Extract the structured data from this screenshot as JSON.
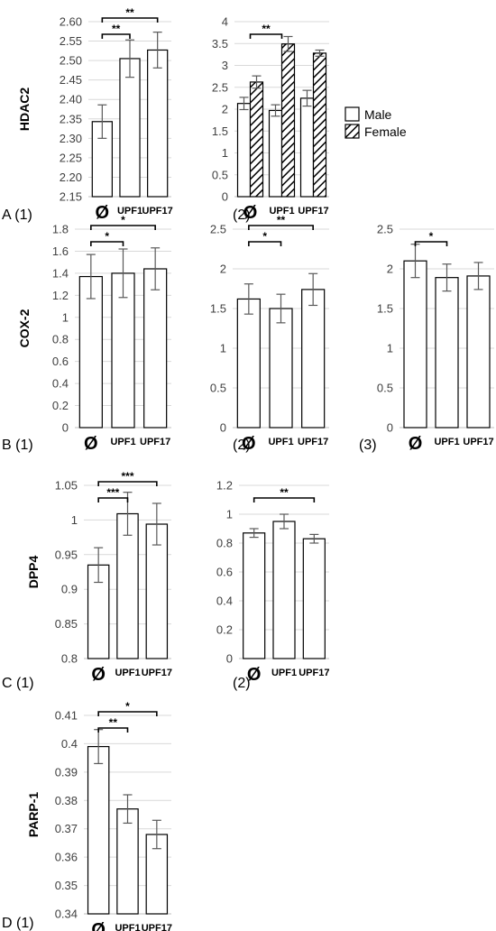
{
  "figure": {
    "legend": [
      {
        "name": "Male",
        "pattern": "solid"
      },
      {
        "name": "Female",
        "pattern": "hatch"
      }
    ]
  },
  "chart_data": [
    {
      "id": "A1",
      "panel_label": "A (1)",
      "type": "bar",
      "ylabel": "HDAC2",
      "categories": [
        "Ø",
        "UPF1",
        "UPF17"
      ],
      "ylim": [
        2.15,
        2.6
      ],
      "yticks": [
        2.15,
        2.2,
        2.25,
        2.3,
        2.35,
        2.4,
        2.45,
        2.5,
        2.55,
        2.6
      ],
      "ytick_decimals": 2,
      "series": [
        {
          "values": [
            2.343,
            2.505,
            2.527
          ],
          "errors": [
            0.043,
            0.048,
            0.046
          ]
        }
      ],
      "significance": [
        {
          "from": 0,
          "to": 1,
          "label": "**"
        },
        {
          "from": 0,
          "to": 2,
          "label": "**"
        }
      ]
    },
    {
      "id": "A2",
      "panel_label": "(2)",
      "type": "bar",
      "ylabel": "",
      "categories": [
        "Ø",
        "UPF1",
        "UPF17"
      ],
      "ylim": [
        0,
        4
      ],
      "yticks": [
        0,
        0.5,
        1,
        1.5,
        2,
        2.5,
        3,
        3.5,
        4
      ],
      "ytick_decimals": -1,
      "series": [
        {
          "name": "Male",
          "values": [
            2.13,
            1.97,
            2.25
          ],
          "errors": [
            0.14,
            0.13,
            0.18
          ]
        },
        {
          "name": "Female",
          "values": [
            2.62,
            3.49,
            3.28
          ],
          "errors": [
            0.14,
            0.17,
            0.07
          ]
        }
      ],
      "significance": [
        {
          "from": 0,
          "to": 1,
          "label": "**"
        }
      ]
    },
    {
      "id": "B1",
      "panel_label": "B (1)",
      "type": "bar",
      "ylabel": "COX-2",
      "categories": [
        "Ø",
        "UPF1",
        "UPF17"
      ],
      "ylim": [
        0,
        1.8
      ],
      "yticks": [
        0,
        0.2,
        0.4,
        0.6,
        0.8,
        1,
        1.2,
        1.4,
        1.6,
        1.8
      ],
      "ytick_decimals": -1,
      "series": [
        {
          "values": [
            1.37,
            1.4,
            1.44
          ],
          "errors": [
            0.2,
            0.22,
            0.19
          ]
        }
      ],
      "significance": [
        {
          "from": 0,
          "to": 1,
          "label": "*"
        },
        {
          "from": 0,
          "to": 2,
          "label": "*"
        }
      ]
    },
    {
      "id": "B2",
      "panel_label": "(2)",
      "type": "bar",
      "ylabel": "",
      "categories": [
        "Ø",
        "UPF1",
        "UPF17"
      ],
      "ylim": [
        0,
        2.5
      ],
      "yticks": [
        0,
        0.5,
        1,
        1.5,
        2,
        2.5
      ],
      "ytick_decimals": -1,
      "series": [
        {
          "values": [
            1.62,
            1.5,
            1.74
          ],
          "errors": [
            0.19,
            0.18,
            0.2
          ]
        }
      ],
      "significance": [
        {
          "from": 0,
          "to": 1,
          "label": "*"
        },
        {
          "from": 0,
          "to": 2,
          "label": "**"
        }
      ]
    },
    {
      "id": "B3",
      "panel_label": "(3)",
      "type": "bar",
      "ylabel": "",
      "categories": [
        "Ø",
        "UPF1",
        "UPF17"
      ],
      "ylim": [
        0,
        2.5
      ],
      "yticks": [
        0,
        0.5,
        1,
        1.5,
        2,
        2.5
      ],
      "ytick_decimals": -1,
      "series": [
        {
          "values": [
            2.1,
            1.89,
            1.91
          ],
          "errors": [
            0.21,
            0.17,
            0.17
          ]
        }
      ],
      "significance": [
        {
          "from": 0,
          "to": 1,
          "label": "*"
        }
      ]
    },
    {
      "id": "C1",
      "panel_label": "C (1)",
      "type": "bar",
      "ylabel": "DPP4",
      "categories": [
        "Ø",
        "UPF1",
        "UPF17"
      ],
      "ylim": [
        0.8,
        1.05
      ],
      "yticks": [
        0.8,
        0.85,
        0.9,
        0.95,
        1,
        1.05
      ],
      "ytick_decimals": -1,
      "series": [
        {
          "values": [
            0.935,
            1.009,
            0.994
          ],
          "errors": [
            0.025,
            0.031,
            0.03
          ]
        }
      ],
      "significance": [
        {
          "from": 0,
          "to": 1,
          "label": "***"
        },
        {
          "from": 0,
          "to": 2,
          "label": "***"
        }
      ]
    },
    {
      "id": "C2",
      "panel_label": "(2)",
      "type": "bar",
      "ylabel": "",
      "categories": [
        "Ø",
        "UPF1",
        "UPF17"
      ],
      "ylim": [
        0,
        1.2
      ],
      "yticks": [
        0,
        0.2,
        0.4,
        0.6,
        0.8,
        1,
        1.2
      ],
      "ytick_decimals": -1,
      "series": [
        {
          "values": [
            0.87,
            0.95,
            0.83
          ],
          "errors": [
            0.03,
            0.05,
            0.03
          ]
        }
      ],
      "significance": [
        {
          "from": 0,
          "to": 2,
          "label": "**"
        }
      ]
    },
    {
      "id": "D1",
      "panel_label": "D (1)",
      "type": "bar",
      "ylabel": "PARP-1",
      "categories": [
        "Ø",
        "UPF1",
        "UPF17"
      ],
      "ylim": [
        0.34,
        0.41
      ],
      "yticks": [
        0.34,
        0.35,
        0.36,
        0.37,
        0.38,
        0.39,
        0.4,
        0.41
      ],
      "ytick_decimals": -1,
      "series": [
        {
          "values": [
            0.399,
            0.377,
            0.368
          ],
          "errors": [
            0.006,
            0.005,
            0.005
          ]
        }
      ],
      "significance": [
        {
          "from": 0,
          "to": 1,
          "label": "**"
        },
        {
          "from": 0,
          "to": 2,
          "label": "*"
        }
      ]
    }
  ]
}
